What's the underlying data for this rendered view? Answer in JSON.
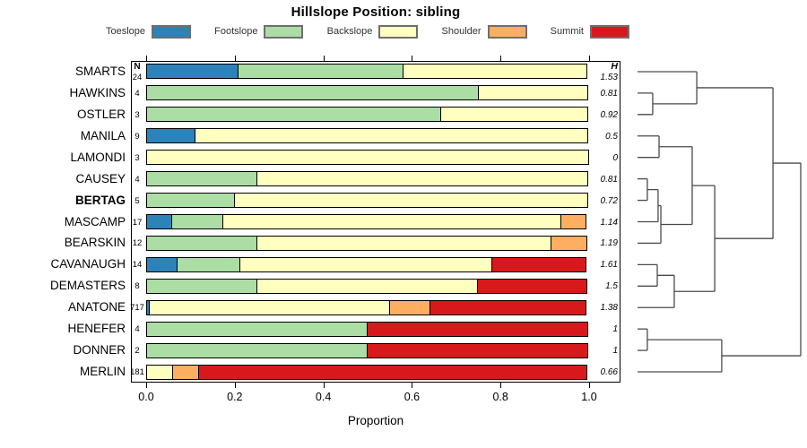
{
  "chart_data": {
    "type": "bar",
    "orientation": "horizontal",
    "stacking": "proportion",
    "title": "Hillslope Position: sibling",
    "xlabel": "Proportion",
    "xlim": [
      0,
      1
    ],
    "x_tick_labels": [
      "0.0",
      "0.2",
      "0.4",
      "0.6",
      "0.8",
      "1.0"
    ],
    "grid": false,
    "legend_position": "top",
    "columns": {
      "n_header": "N",
      "h_header": "H"
    },
    "legend": [
      {
        "key": "toeslope",
        "label": "Toeslope",
        "color": "#2B83BA"
      },
      {
        "key": "footslope",
        "label": "Footslope",
        "color": "#ABDDA4"
      },
      {
        "key": "backslope",
        "label": "Backslope",
        "color": "#FFFFBF"
      },
      {
        "key": "shoulder",
        "label": "Shoulder",
        "color": "#FDAE61"
      },
      {
        "key": "summit",
        "label": "Summit",
        "color": "#D7191C"
      }
    ],
    "rows": [
      {
        "label": "SMARTS",
        "n": "24",
        "h": "1.53",
        "emphasis": false,
        "segments": [
          [
            "toeslope",
            0.208
          ],
          [
            "footslope",
            0.375
          ],
          [
            "backslope",
            0.417
          ]
        ]
      },
      {
        "label": "HAWKINS",
        "n": "4",
        "h": "0.81",
        "emphasis": false,
        "segments": [
          [
            "footslope",
            0.75
          ],
          [
            "backslope",
            0.25
          ]
        ]
      },
      {
        "label": "OSTLER",
        "n": "3",
        "h": "0.92",
        "emphasis": false,
        "segments": [
          [
            "footslope",
            0.667
          ],
          [
            "backslope",
            0.333
          ]
        ]
      },
      {
        "label": "MANILA",
        "n": "9",
        "h": "0.5",
        "emphasis": false,
        "segments": [
          [
            "toeslope",
            0.111
          ],
          [
            "backslope",
            0.889
          ]
        ]
      },
      {
        "label": "LAMONDI",
        "n": "3",
        "h": "0",
        "emphasis": false,
        "segments": [
          [
            "backslope",
            1.0
          ]
        ]
      },
      {
        "label": "CAUSEY",
        "n": "4",
        "h": "0.81",
        "emphasis": false,
        "segments": [
          [
            "footslope",
            0.25
          ],
          [
            "backslope",
            0.75
          ]
        ]
      },
      {
        "label": "BERTAG",
        "n": "5",
        "h": "0.72",
        "emphasis": true,
        "segments": [
          [
            "footslope",
            0.2
          ],
          [
            "backslope",
            0.8
          ]
        ]
      },
      {
        "label": "MASCAMP",
        "n": "17",
        "h": "1.14",
        "emphasis": false,
        "segments": [
          [
            "toeslope",
            0.059
          ],
          [
            "footslope",
            0.118
          ],
          [
            "backslope",
            0.765
          ],
          [
            "shoulder",
            0.058
          ]
        ]
      },
      {
        "label": "BEARSKIN",
        "n": "12",
        "h": "1.19",
        "emphasis": false,
        "segments": [
          [
            "footslope",
            0.25
          ],
          [
            "backslope",
            0.667
          ],
          [
            "shoulder",
            0.083
          ]
        ]
      },
      {
        "label": "CAVANAUGH",
        "n": "14",
        "h": "1.61",
        "emphasis": false,
        "segments": [
          [
            "toeslope",
            0.071
          ],
          [
            "footslope",
            0.143
          ],
          [
            "backslope",
            0.571
          ],
          [
            "summit",
            0.215
          ]
        ]
      },
      {
        "label": "DEMASTERS",
        "n": "8",
        "h": "1.5",
        "emphasis": false,
        "segments": [
          [
            "footslope",
            0.25
          ],
          [
            "backslope",
            0.5
          ],
          [
            "summit",
            0.25
          ]
        ]
      },
      {
        "label": "ANATONE",
        "n": "717",
        "h": "1.38",
        "emphasis": false,
        "segments": [
          [
            "toeslope",
            0.008
          ],
          [
            "backslope",
            0.545
          ],
          [
            "shoulder",
            0.093
          ],
          [
            "summit",
            0.354
          ]
        ]
      },
      {
        "label": "HENEFER",
        "n": "4",
        "h": "1",
        "emphasis": false,
        "segments": [
          [
            "footslope",
            0.5
          ],
          [
            "summit",
            0.5
          ]
        ]
      },
      {
        "label": "DONNER",
        "n": "2",
        "h": "1",
        "emphasis": false,
        "segments": [
          [
            "footslope",
            0.5
          ],
          [
            "summit",
            0.5
          ]
        ]
      },
      {
        "label": "MERLIN",
        "n": "181",
        "h": "0.66",
        "emphasis": false,
        "segments": [
          [
            "backslope",
            0.061
          ],
          [
            "shoulder",
            0.061
          ],
          [
            "summit",
            0.878
          ]
        ]
      }
    ],
    "dendrogram": {
      "leaf_order": [
        "SMARTS",
        "HAWKINS",
        "OSTLER",
        "MANILA",
        "LAMONDI",
        "CAUSEY",
        "BERTAG",
        "MASCAMP",
        "BEARSKIN",
        "CAVANAUGH",
        "DEMASTERS",
        "ANATONE",
        "HENEFER",
        "DONNER",
        "MERLIN"
      ],
      "merges": [
        [
          "HAWKINS",
          "OSTLER",
          0.093
        ],
        [
          "SMARTS",
          "#0",
          0.363
        ],
        [
          "MANILA",
          "LAMONDI",
          0.132
        ],
        [
          "CAUSEY",
          "BERTAG",
          0.06
        ],
        [
          "#3",
          "MASCAMP",
          0.126
        ],
        [
          "#4",
          "BEARSKIN",
          0.143
        ],
        [
          "#2",
          "#5",
          0.335
        ],
        [
          "CAVANAUGH",
          "DEMASTERS",
          0.121
        ],
        [
          "#7",
          "ANATONE",
          0.225
        ],
        [
          "#6",
          "#8",
          0.473
        ],
        [
          "#1",
          "#9",
          0.83
        ],
        [
          "HENEFER",
          "DONNER",
          0.06
        ],
        [
          "#11",
          "MERLIN",
          0.516
        ],
        [
          "#10",
          "#12",
          1.0
        ]
      ]
    }
  }
}
